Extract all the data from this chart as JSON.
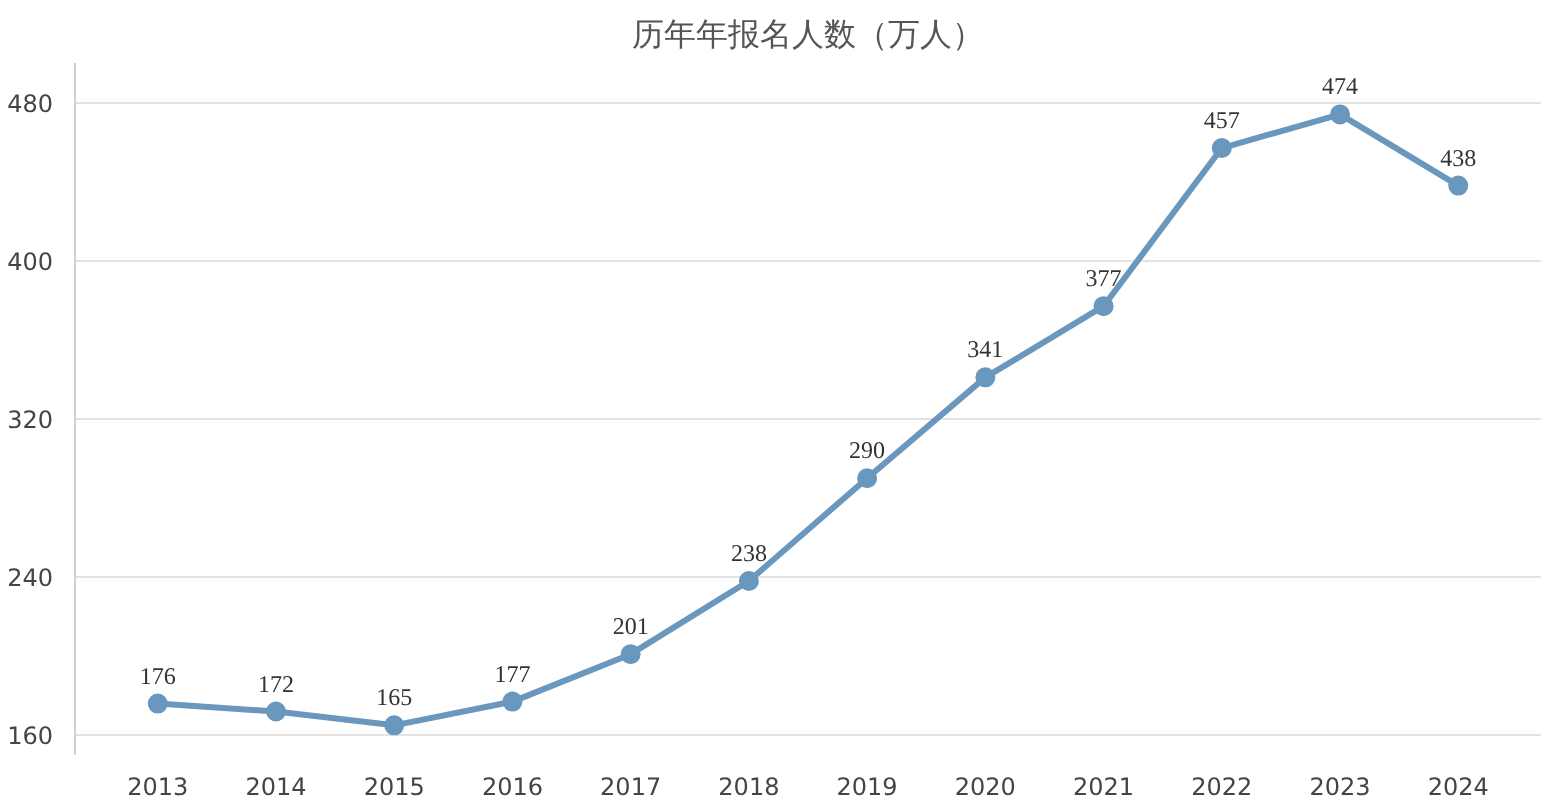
{
  "chart_data": {
    "type": "line",
    "title": "历年年报名人数（万人）",
    "categories": [
      "2013",
      "2014",
      "2015",
      "2016",
      "2017",
      "2018",
      "2019",
      "2020",
      "2021",
      "2022",
      "2023",
      "2024"
    ],
    "series": [
      {
        "color": "#6a97bd",
        "values": [
          176,
          172,
          165,
          177,
          201,
          238,
          290,
          341,
          377,
          457,
          474,
          438
        ]
      }
    ],
    "ylim": [
      150,
      500
    ],
    "yticks": [
      160,
      240,
      320,
      400,
      480
    ],
    "grid": "y",
    "marker": "circle",
    "line_style": "solid",
    "data_labels": true
  }
}
